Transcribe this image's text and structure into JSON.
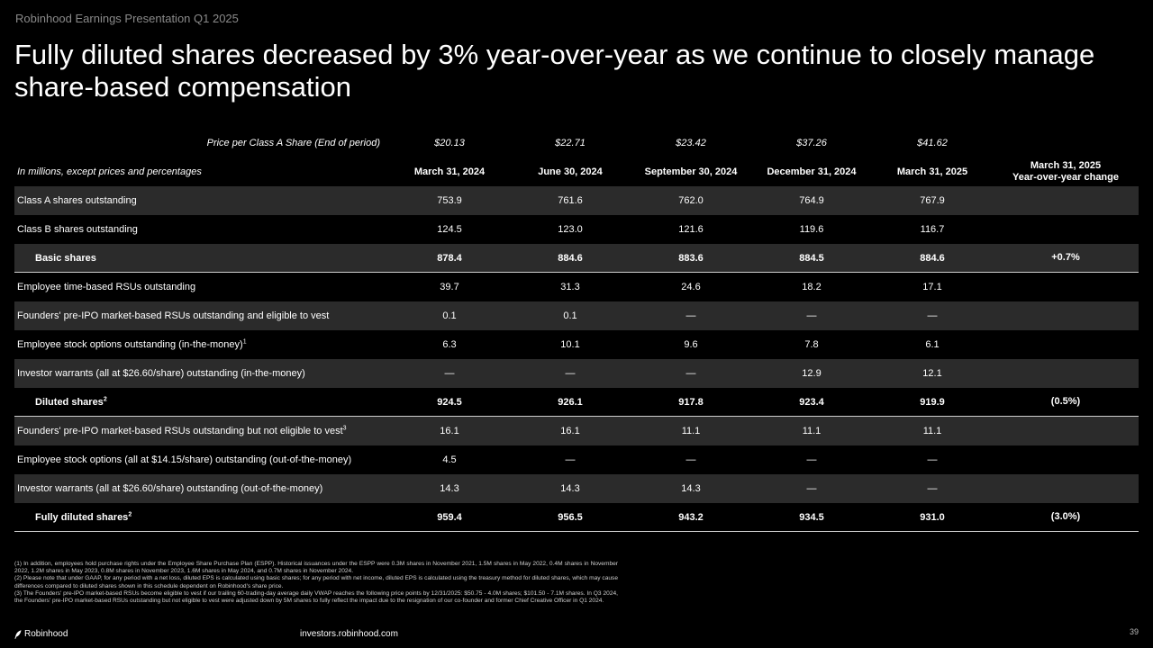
{
  "header": {
    "doc_label": "Robinhood Earnings Presentation Q1 2025",
    "title": "Fully diluted shares decreased by 3% year-over-year as we continue to closely manage share-based compensation"
  },
  "table": {
    "price_label": "Price per Class A Share (End of period)",
    "prices": [
      "$20.13",
      "$22.71",
      "$23.42",
      "$37.26",
      "$41.62"
    ],
    "unit_note": "In millions, except prices and percentages",
    "columns": [
      "March 31, 2024",
      "June 30, 2024",
      "September 30, 2024",
      "December 31, 2024",
      "March 31, 2025"
    ],
    "change_header_line1": "March 31, 2025",
    "change_header_line2": "Year-over-year change",
    "rows": [
      {
        "label": "Class A shares outstanding",
        "values": [
          "753.9",
          "761.6",
          "762.0",
          "764.9",
          "767.9"
        ],
        "change": ""
      },
      {
        "label": "Class B shares outstanding",
        "values": [
          "124.5",
          "123.0",
          "121.6",
          "119.6",
          "116.7"
        ],
        "change": ""
      },
      {
        "label": "Basic shares",
        "values": [
          "878.4",
          "884.6",
          "883.6",
          "884.5",
          "884.6"
        ],
        "change": "+0.7%"
      },
      {
        "label": "Employee time-based RSUs outstanding",
        "values": [
          "39.7",
          "31.3",
          "24.6",
          "18.2",
          "17.1"
        ],
        "change": ""
      },
      {
        "label": "Founders' pre-IPO market-based RSUs outstanding and eligible to vest",
        "values": [
          "0.1",
          "0.1",
          "—",
          "—",
          "—"
        ],
        "change": ""
      },
      {
        "label": "Employee stock options outstanding (in-the-money)",
        "sup": "1",
        "values": [
          "6.3",
          "10.1",
          "9.6",
          "7.8",
          "6.1"
        ],
        "change": ""
      },
      {
        "label": "Investor warrants (all at $26.60/share) outstanding (in-the-money)",
        "values": [
          "—",
          "—",
          "—",
          "12.9",
          "12.1"
        ],
        "change": ""
      },
      {
        "label": "Diluted shares",
        "sup": "2",
        "values": [
          "924.5",
          "926.1",
          "917.8",
          "923.4",
          "919.9"
        ],
        "change": "(0.5%)"
      },
      {
        "label": "Founders' pre-IPO market-based RSUs outstanding but not eligible to vest",
        "sup": "3",
        "values": [
          "16.1",
          "16.1",
          "11.1",
          "11.1",
          "11.1"
        ],
        "change": ""
      },
      {
        "label": "Employee stock options (all at $14.15/share) outstanding (out-of-the-money)",
        "values": [
          "4.5",
          "—",
          "—",
          "—",
          "—"
        ],
        "change": ""
      },
      {
        "label": "Investor warrants (all at $26.60/share) outstanding (out-of-the-money)",
        "values": [
          "14.3",
          "14.3",
          "14.3",
          "—",
          "—"
        ],
        "change": ""
      },
      {
        "label": "Fully diluted shares",
        "sup": "2",
        "values": [
          "959.4",
          "956.5",
          "943.2",
          "934.5",
          "931.0"
        ],
        "change": "(3.0%)"
      }
    ]
  },
  "footnotes": {
    "n1": "(1) In addition, employees hold purchase rights under the Employee Share Purchase Plan (ESPP). Historical issuances under the ESPP were 0.3M shares in November 2021, 1.5M shares in May 2022, 0.4M shares in November 2022, 1.2M shares in May 2023, 0.8M shares in November 2023, 1.6M shares in May 2024, and 0.7M shares in November 2024.",
    "n2": "(2) Please note that under GAAP, for any period with a net loss, diluted EPS is calculated using basic shares; for any period with net income, diluted EPS is calculated using the treasury method for diluted shares, which may cause differences compared to diluted shares shown in this schedule dependent on Robinhood's share price.",
    "n3": "(3) The Founders' pre-IPO market-based RSUs become eligible to vest if our trailing 60-trading-day average daily VWAP reaches the following price points by 12/31/2025: $50.75 - 4.0M shares; $101.50 - 7.1M shares. In Q3 2024, the Founders' pre-IPO market-based RSUs outstanding but not eligible to vest were adjusted down by 5M shares to fully reflect the impact due to the resignation of our co-founder and former Chief Creative Officer in Q1 2024."
  },
  "footer": {
    "brand": "Robinhood",
    "logo_icon": "feather-icon",
    "url": "investors.robinhood.com",
    "page_number": "39"
  }
}
